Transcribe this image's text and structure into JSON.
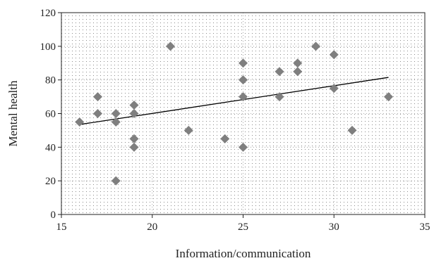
{
  "chart_data": {
    "type": "scatter",
    "title": "",
    "xlabel": "Information/communication",
    "ylabel": "Mental health",
    "xlim": [
      15,
      35
    ],
    "ylim": [
      0,
      120
    ],
    "xticks": [
      15,
      20,
      25,
      30,
      35
    ],
    "yticks": [
      0,
      20,
      40,
      60,
      80,
      100,
      120
    ],
    "grid": "dotted, both axes",
    "legend": "none",
    "series": [
      {
        "marker": "diamond",
        "color": "#7f7f7f",
        "points": [
          {
            "x": 16,
            "y": 55
          },
          {
            "x": 17,
            "y": 70
          },
          {
            "x": 17,
            "y": 60
          },
          {
            "x": 18,
            "y": 60
          },
          {
            "x": 18,
            "y": 55
          },
          {
            "x": 18,
            "y": 20
          },
          {
            "x": 19,
            "y": 65
          },
          {
            "x": 19,
            "y": 60
          },
          {
            "x": 19,
            "y": 45
          },
          {
            "x": 19,
            "y": 40
          },
          {
            "x": 21,
            "y": 100
          },
          {
            "x": 22,
            "y": 50
          },
          {
            "x": 24,
            "y": 45
          },
          {
            "x": 25,
            "y": 90
          },
          {
            "x": 25,
            "y": 80
          },
          {
            "x": 25,
            "y": 70
          },
          {
            "x": 25,
            "y": 40
          },
          {
            "x": 27,
            "y": 85
          },
          {
            "x": 27,
            "y": 70
          },
          {
            "x": 28,
            "y": 90
          },
          {
            "x": 28,
            "y": 85
          },
          {
            "x": 29,
            "y": 100
          },
          {
            "x": 30,
            "y": 95
          },
          {
            "x": 30,
            "y": 75
          },
          {
            "x": 31,
            "y": 50
          },
          {
            "x": 33,
            "y": 70
          }
        ]
      }
    ],
    "trendline": {
      "type": "linear",
      "color": "#000000",
      "x_start": 16,
      "y_start": 53.5,
      "x_end": 33,
      "y_end": 81.5
    }
  }
}
